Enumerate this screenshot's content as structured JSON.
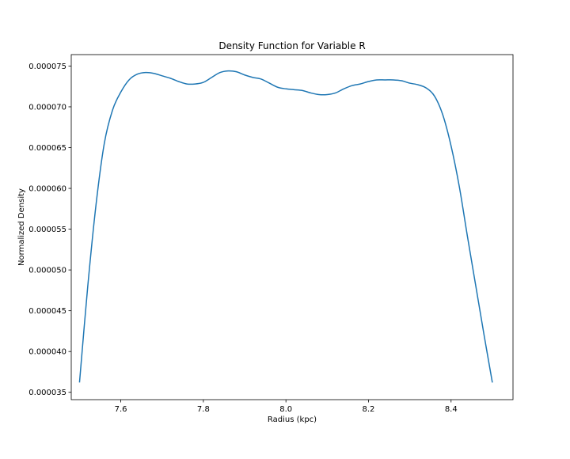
{
  "chart_data": {
    "type": "line",
    "title": "Density Function for Variable R",
    "xlabel": "Radius (kpc)",
    "ylabel": "Normalized Density",
    "xlim": [
      7.48,
      8.55
    ],
    "ylim": [
      3.41e-05,
      7.64e-05
    ],
    "xticks": [
      7.6,
      7.8,
      8.0,
      8.2,
      8.4
    ],
    "xtick_labels": [
      "7.6",
      "7.8",
      "8.0",
      "8.2",
      "8.4"
    ],
    "yticks": [
      3.5e-05,
      4e-05,
      4.5e-05,
      5e-05,
      5.5e-05,
      6e-05,
      6.5e-05,
      7e-05,
      7.5e-05
    ],
    "ytick_labels": [
      "0.000035",
      "0.000040",
      "0.000045",
      "0.000050",
      "0.000055",
      "0.000060",
      "0.000065",
      "0.000070",
      "0.000075"
    ],
    "grid": false,
    "series": [
      {
        "color": "#1f77b4",
        "x": [
          7.5,
          7.52,
          7.54,
          7.56,
          7.58,
          7.6,
          7.62,
          7.64,
          7.66,
          7.68,
          7.7,
          7.72,
          7.74,
          7.76,
          7.78,
          7.8,
          7.82,
          7.84,
          7.86,
          7.88,
          7.9,
          7.92,
          7.94,
          7.96,
          7.98,
          8.0,
          8.02,
          8.04,
          8.06,
          8.08,
          8.1,
          8.12,
          8.14,
          8.16,
          8.18,
          8.2,
          8.22,
          8.24,
          8.26,
          8.28,
          8.3,
          8.32,
          8.34,
          8.36,
          8.38,
          8.4,
          8.42,
          8.44,
          8.46,
          8.48,
          8.5
        ],
        "y": [
          3.62e-05,
          4.8e-05,
          5.8e-05,
          6.55e-05,
          6.96e-05,
          7.18e-05,
          7.33e-05,
          7.4e-05,
          7.42e-05,
          7.41e-05,
          7.38e-05,
          7.35e-05,
          7.31e-05,
          7.28e-05,
          7.28e-05,
          7.3e-05,
          7.36e-05,
          7.42e-05,
          7.44e-05,
          7.43e-05,
          7.39e-05,
          7.36e-05,
          7.34e-05,
          7.29e-05,
          7.24e-05,
          7.22e-05,
          7.21e-05,
          7.2e-05,
          7.17e-05,
          7.15e-05,
          7.15e-05,
          7.17e-05,
          7.22e-05,
          7.26e-05,
          7.28e-05,
          7.31e-05,
          7.33e-05,
          7.33e-05,
          7.33e-05,
          7.32e-05,
          7.29e-05,
          7.27e-05,
          7.23e-05,
          7.13e-05,
          6.9e-05,
          6.52e-05,
          6.02e-05,
          5.4e-05,
          4.8e-05,
          4.2e-05,
          3.62e-05
        ]
      }
    ]
  }
}
